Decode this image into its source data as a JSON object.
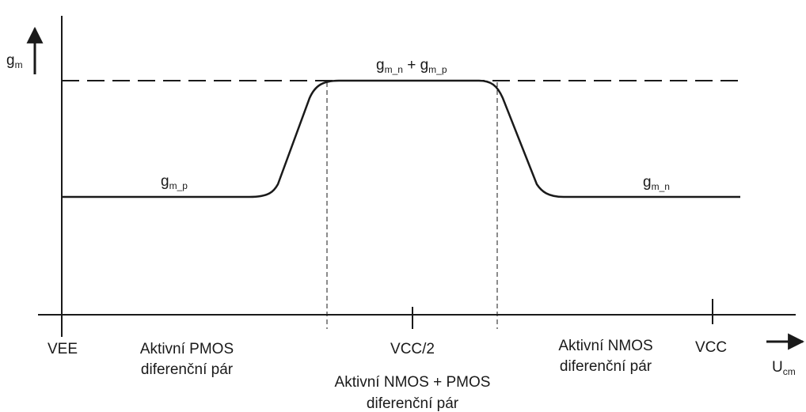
{
  "y_axis": {
    "label_main": "g",
    "label_sub": "m"
  },
  "x_axis": {
    "label_main": "U",
    "label_sub": "cm"
  },
  "curve_labels": {
    "top": {
      "g1": "g",
      "s1": "m_n",
      "plus": " + ",
      "g2": "g",
      "s2": "m_p"
    },
    "left": {
      "g": "g",
      "s": "m_p"
    },
    "right": {
      "g": "g",
      "s": "m_n"
    }
  },
  "ticks": {
    "vee": "VEE",
    "vcc_half": "VCC/2",
    "vcc": "VCC"
  },
  "regions": {
    "pmos": [
      "Aktivní PMOS",
      "diferenční pár"
    ],
    "both": [
      "Aktivní NMOS + PMOS",
      "diferenční pár"
    ],
    "nmos": [
      "Aktivní NMOS",
      "diferenční pár"
    ]
  },
  "colors": {
    "line": "#1a1a1a",
    "background": "#ffffff"
  }
}
